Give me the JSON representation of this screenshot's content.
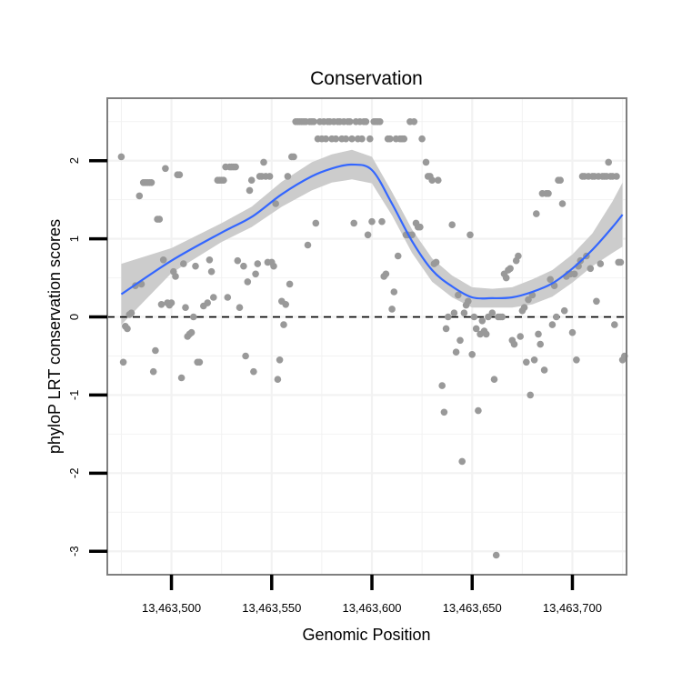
{
  "chart_data": {
    "type": "scatter",
    "title": "Conservation",
    "xlabel": "Genomic Position",
    "ylabel": "phyloP LRT conservation scores",
    "xlim": [
      13463468,
      13463727
    ],
    "ylim": [
      -3.3,
      2.8
    ],
    "x_ticks": [
      13463500,
      13463550,
      13463600,
      13463650,
      13463700
    ],
    "x_tick_labels": [
      "13,463,500",
      "13,463,550",
      "13,463,600",
      "13,463,650",
      "13,463,700"
    ],
    "y_ticks": [
      -3,
      -2,
      -1,
      0,
      1,
      2
    ],
    "y_tick_labels": [
      "-3",
      "-2",
      "-1",
      "0",
      "1",
      "2"
    ],
    "reference_line": {
      "y": 0,
      "style": "dashed"
    },
    "grid": true,
    "colors": {
      "points": "#999999",
      "smooth_line": "#3366ff",
      "confidence_band": "#cccccc",
      "panel_border": "#7f7f7f",
      "grid": "#f2f2f2"
    },
    "points": [
      [
        13463475,
        2.05
      ],
      [
        13463476,
        -0.58
      ],
      [
        13463477,
        -0.12
      ],
      [
        13463478,
        -0.15
      ],
      [
        13463479,
        0.03
      ],
      [
        13463480,
        0.05
      ],
      [
        13463482,
        0.4
      ],
      [
        13463484,
        1.55
      ],
      [
        13463485,
        0.42
      ],
      [
        13463486,
        1.72
      ],
      [
        13463487,
        1.72
      ],
      [
        13463488,
        1.72
      ],
      [
        13463489,
        1.72
      ],
      [
        13463490,
        1.72
      ],
      [
        13463491,
        -0.7
      ],
      [
        13463492,
        -0.43
      ],
      [
        13463493,
        1.25
      ],
      [
        13463494,
        1.25
      ],
      [
        13463495,
        0.16
      ],
      [
        13463496,
        0.73
      ],
      [
        13463497,
        1.9
      ],
      [
        13463498,
        0.18
      ],
      [
        13463499,
        0.15
      ],
      [
        13463500,
        0.18
      ],
      [
        13463501,
        0.58
      ],
      [
        13463502,
        0.52
      ],
      [
        13463503,
        1.82
      ],
      [
        13463504,
        1.82
      ],
      [
        13463505,
        -0.78
      ],
      [
        13463506,
        0.68
      ],
      [
        13463507,
        0.12
      ],
      [
        13463508,
        -0.25
      ],
      [
        13463509,
        -0.22
      ],
      [
        13463510,
        -0.2
      ],
      [
        13463511,
        0.0
      ],
      [
        13463512,
        0.65
      ],
      [
        13463513,
        -0.58
      ],
      [
        13463514,
        -0.58
      ],
      [
        13463516,
        0.14
      ],
      [
        13463518,
        0.18
      ],
      [
        13463519,
        0.73
      ],
      [
        13463520,
        0.58
      ],
      [
        13463521,
        0.25
      ],
      [
        13463523,
        1.75
      ],
      [
        13463524,
        1.75
      ],
      [
        13463525,
        1.75
      ],
      [
        13463526,
        1.75
      ],
      [
        13463527,
        1.92
      ],
      [
        13463528,
        0.25
      ],
      [
        13463529,
        1.92
      ],
      [
        13463530,
        1.92
      ],
      [
        13463531,
        1.92
      ],
      [
        13463532,
        1.92
      ],
      [
        13463533,
        0.72
      ],
      [
        13463534,
        0.12
      ],
      [
        13463536,
        0.65
      ],
      [
        13463537,
        -0.5
      ],
      [
        13463538,
        0.45
      ],
      [
        13463539,
        1.62
      ],
      [
        13463540,
        1.75
      ],
      [
        13463541,
        -0.7
      ],
      [
        13463542,
        0.55
      ],
      [
        13463543,
        0.68
      ],
      [
        13463544,
        1.8
      ],
      [
        13463545,
        1.8
      ],
      [
        13463546,
        1.98
      ],
      [
        13463547,
        1.8
      ],
      [
        13463548,
        0.7
      ],
      [
        13463549,
        1.8
      ],
      [
        13463550,
        0.7
      ],
      [
        13463551,
        0.65
      ],
      [
        13463552,
        1.45
      ],
      [
        13463553,
        -0.8
      ],
      [
        13463554,
        -0.55
      ],
      [
        13463555,
        0.2
      ],
      [
        13463556,
        -0.1
      ],
      [
        13463557,
        0.16
      ],
      [
        13463558,
        1.8
      ],
      [
        13463559,
        0.42
      ],
      [
        13463560,
        2.05
      ],
      [
        13463561,
        2.05
      ],
      [
        13463562,
        2.5
      ],
      [
        13463563,
        2.5
      ],
      [
        13463564,
        2.5
      ],
      [
        13463565,
        2.5
      ],
      [
        13463566,
        2.5
      ],
      [
        13463567,
        2.5
      ],
      [
        13463568,
        0.92
      ],
      [
        13463569,
        2.5
      ],
      [
        13463570,
        2.5
      ],
      [
        13463571,
        2.5
      ],
      [
        13463572,
        1.2
      ],
      [
        13463573,
        2.28
      ],
      [
        13463574,
        2.5
      ],
      [
        13463575,
        2.28
      ],
      [
        13463576,
        2.5
      ],
      [
        13463577,
        2.28
      ],
      [
        13463578,
        2.5
      ],
      [
        13463579,
        2.5
      ],
      [
        13463580,
        2.28
      ],
      [
        13463581,
        2.5
      ],
      [
        13463582,
        2.28
      ],
      [
        13463583,
        2.5
      ],
      [
        13463584,
        2.5
      ],
      [
        13463585,
        2.28
      ],
      [
        13463586,
        2.5
      ],
      [
        13463587,
        2.28
      ],
      [
        13463588,
        2.5
      ],
      [
        13463589,
        2.5
      ],
      [
        13463590,
        2.28
      ],
      [
        13463591,
        1.2
      ],
      [
        13463592,
        2.5
      ],
      [
        13463593,
        2.28
      ],
      [
        13463594,
        2.5
      ],
      [
        13463595,
        2.28
      ],
      [
        13463596,
        2.5
      ],
      [
        13463597,
        2.5
      ],
      [
        13463598,
        1.05
      ],
      [
        13463599,
        2.28
      ],
      [
        13463600,
        1.22
      ],
      [
        13463601,
        2.5
      ],
      [
        13463602,
        2.5
      ],
      [
        13463603,
        2.5
      ],
      [
        13463604,
        2.5
      ],
      [
        13463605,
        1.22
      ],
      [
        13463606,
        0.52
      ],
      [
        13463607,
        0.55
      ],
      [
        13463608,
        2.28
      ],
      [
        13463609,
        2.28
      ],
      [
        13463610,
        0.1
      ],
      [
        13463611,
        0.32
      ],
      [
        13463612,
        2.28
      ],
      [
        13463613,
        0.78
      ],
      [
        13463614,
        2.28
      ],
      [
        13463615,
        2.28
      ],
      [
        13463616,
        2.28
      ],
      [
        13463617,
        1.05
      ],
      [
        13463618,
        1.05
      ],
      [
        13463619,
        2.5
      ],
      [
        13463620,
        1.05
      ],
      [
        13463621,
        2.5
      ],
      [
        13463622,
        1.2
      ],
      [
        13463623,
        1.15
      ],
      [
        13463624,
        1.15
      ],
      [
        13463625,
        2.28
      ],
      [
        13463627,
        1.98
      ],
      [
        13463628,
        1.8
      ],
      [
        13463629,
        1.8
      ],
      [
        13463630,
        1.75
      ],
      [
        13463631,
        0.68
      ],
      [
        13463632,
        0.7
      ],
      [
        13463633,
        1.75
      ],
      [
        13463635,
        -0.88
      ],
      [
        13463636,
        -1.22
      ],
      [
        13463637,
        -0.15
      ],
      [
        13463638,
        0.0
      ],
      [
        13463640,
        1.18
      ],
      [
        13463641,
        0.05
      ],
      [
        13463642,
        -0.45
      ],
      [
        13463643,
        0.28
      ],
      [
        13463644,
        -0.3
      ],
      [
        13463645,
        -1.85
      ],
      [
        13463646,
        0.05
      ],
      [
        13463647,
        0.15
      ],
      [
        13463648,
        0.2
      ],
      [
        13463649,
        1.05
      ],
      [
        13463650,
        -0.48
      ],
      [
        13463651,
        0.0
      ],
      [
        13463652,
        -0.15
      ],
      [
        13463653,
        -1.2
      ],
      [
        13463654,
        -0.22
      ],
      [
        13463655,
        -0.05
      ],
      [
        13463656,
        -0.18
      ],
      [
        13463657,
        -0.22
      ],
      [
        13463658,
        0.0
      ],
      [
        13463660,
        0.05
      ],
      [
        13463661,
        -0.8
      ],
      [
        13463662,
        -3.05
      ],
      [
        13463663,
        0.0
      ],
      [
        13463664,
        0.0
      ],
      [
        13463665,
        0.0
      ],
      [
        13463666,
        0.55
      ],
      [
        13463667,
        0.5
      ],
      [
        13463668,
        0.6
      ],
      [
        13463669,
        0.62
      ],
      [
        13463670,
        -0.3
      ],
      [
        13463671,
        -0.35
      ],
      [
        13463672,
        0.72
      ],
      [
        13463673,
        0.78
      ],
      [
        13463674,
        -0.25
      ],
      [
        13463675,
        0.08
      ],
      [
        13463676,
        0.12
      ],
      [
        13463677,
        -0.58
      ],
      [
        13463678,
        0.22
      ],
      [
        13463679,
        -1.0
      ],
      [
        13463680,
        0.28
      ],
      [
        13463681,
        -0.55
      ],
      [
        13463682,
        1.32
      ],
      [
        13463683,
        -0.22
      ],
      [
        13463684,
        -0.35
      ],
      [
        13463685,
        1.58
      ],
      [
        13463686,
        -0.68
      ],
      [
        13463687,
        1.58
      ],
      [
        13463688,
        1.58
      ],
      [
        13463689,
        0.48
      ],
      [
        13463690,
        -0.1
      ],
      [
        13463691,
        0.4
      ],
      [
        13463692,
        0.0
      ],
      [
        13463693,
        1.75
      ],
      [
        13463694,
        1.75
      ],
      [
        13463695,
        1.45
      ],
      [
        13463696,
        0.08
      ],
      [
        13463697,
        0.52
      ],
      [
        13463698,
        0.55
      ],
      [
        13463699,
        0.55
      ],
      [
        13463700,
        -0.2
      ],
      [
        13463701,
        0.55
      ],
      [
        13463702,
        -0.55
      ],
      [
        13463703,
        0.65
      ],
      [
        13463704,
        0.72
      ],
      [
        13463705,
        1.8
      ],
      [
        13463706,
        1.8
      ],
      [
        13463707,
        0.78
      ],
      [
        13463708,
        1.8
      ],
      [
        13463709,
        0.62
      ],
      [
        13463710,
        1.8
      ],
      [
        13463711,
        1.8
      ],
      [
        13463712,
        0.2
      ],
      [
        13463713,
        1.8
      ],
      [
        13463714,
        0.68
      ],
      [
        13463715,
        1.8
      ],
      [
        13463716,
        1.8
      ],
      [
        13463717,
        1.8
      ],
      [
        13463718,
        1.98
      ],
      [
        13463719,
        1.8
      ],
      [
        13463720,
        1.8
      ],
      [
        13463721,
        -0.1
      ],
      [
        13463722,
        1.8
      ],
      [
        13463723,
        0.7
      ],
      [
        13463724,
        0.7
      ],
      [
        13463725,
        -0.55
      ],
      [
        13463726,
        -0.5
      ]
    ],
    "smooth": {
      "x": [
        13463475,
        13463500,
        13463525,
        13463540,
        13463555,
        13463570,
        13463580,
        13463590,
        13463600,
        13463610,
        13463620,
        13463630,
        13463640,
        13463650,
        13463660,
        13463670,
        13463680,
        13463690,
        13463700,
        13463710,
        13463720,
        13463725
      ],
      "y": [
        0.29,
        0.72,
        1.08,
        1.28,
        1.57,
        1.8,
        1.9,
        1.95,
        1.88,
        1.45,
        0.97,
        0.6,
        0.39,
        0.25,
        0.24,
        0.25,
        0.32,
        0.43,
        0.62,
        0.86,
        1.15,
        1.31
      ],
      "upper": [
        0.68,
        0.88,
        1.2,
        1.41,
        1.73,
        1.98,
        2.08,
        2.14,
        2.05,
        1.6,
        1.12,
        0.75,
        0.53,
        0.38,
        0.36,
        0.38,
        0.48,
        0.6,
        0.8,
        1.07,
        1.48,
        1.72
      ],
      "lower": [
        -0.1,
        0.56,
        0.96,
        1.15,
        1.41,
        1.62,
        1.72,
        1.76,
        1.71,
        1.3,
        0.82,
        0.45,
        0.25,
        0.12,
        0.12,
        0.12,
        0.16,
        0.26,
        0.44,
        0.65,
        0.82,
        0.9
      ]
    }
  }
}
